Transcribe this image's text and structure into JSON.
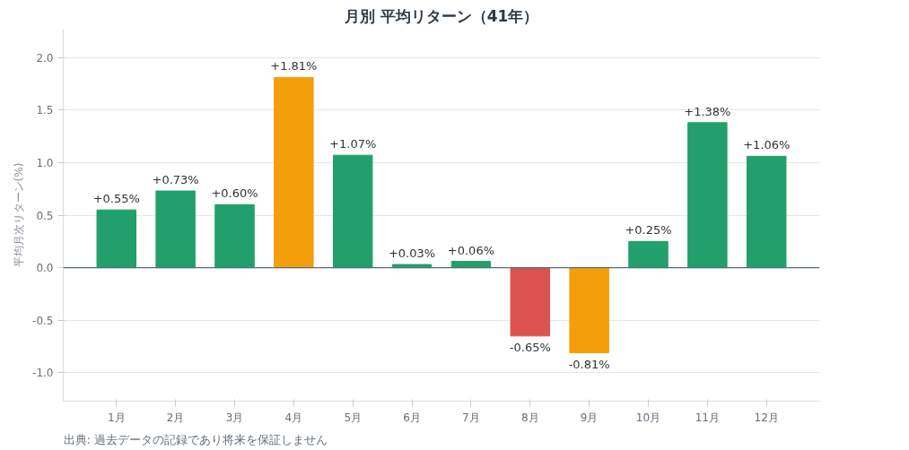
{
  "chart_data": {
    "type": "bar",
    "title": "月別 平均リターン（41年）",
    "ylabel": "平均月次リターン(%)",
    "categories": [
      "1月",
      "2月",
      "3月",
      "4月",
      "5月",
      "6月",
      "7月",
      "8月",
      "9月",
      "10月",
      "11月",
      "12月"
    ],
    "values": [
      0.55,
      0.73,
      0.6,
      1.81,
      1.07,
      0.03,
      0.06,
      -0.65,
      -0.81,
      0.25,
      1.38,
      1.06
    ],
    "colors": [
      "#21a06b",
      "#21a06b",
      "#21a06b",
      "#f59e0b",
      "#21a06b",
      "#21a06b",
      "#21a06b",
      "#dc524f",
      "#f59e0b",
      "#21a06b",
      "#21a06b",
      "#21a06b"
    ],
    "value_labels": [
      "+0.55%",
      "+0.73%",
      "+0.60%",
      "+1.81%",
      "+1.07%",
      "+0.03%",
      "+0.06%",
      "-0.65%",
      "-0.81%",
      "+0.25%",
      "+1.38%",
      "+1.06%"
    ],
    "ylim": [
      -1.27,
      2.27
    ],
    "yticks": [
      {
        "value": -1.0,
        "label": "-1.0"
      },
      {
        "value": -0.5,
        "label": "-0.5"
      },
      {
        "value": 0.0,
        "label": "0.0"
      },
      {
        "value": 0.5,
        "label": "0.5"
      },
      {
        "value": 1.0,
        "label": "1.0"
      },
      {
        "value": 1.5,
        "label": "1.5"
      },
      {
        "value": 2.0,
        "label": "2.0"
      }
    ],
    "grid": "y",
    "ref_lines": [
      {
        "axis": "y",
        "value": 0,
        "color": "#5a6b7b"
      }
    ],
    "annotations": [
      "出典: 過去データの記録であり将来を保証しません"
    ]
  }
}
